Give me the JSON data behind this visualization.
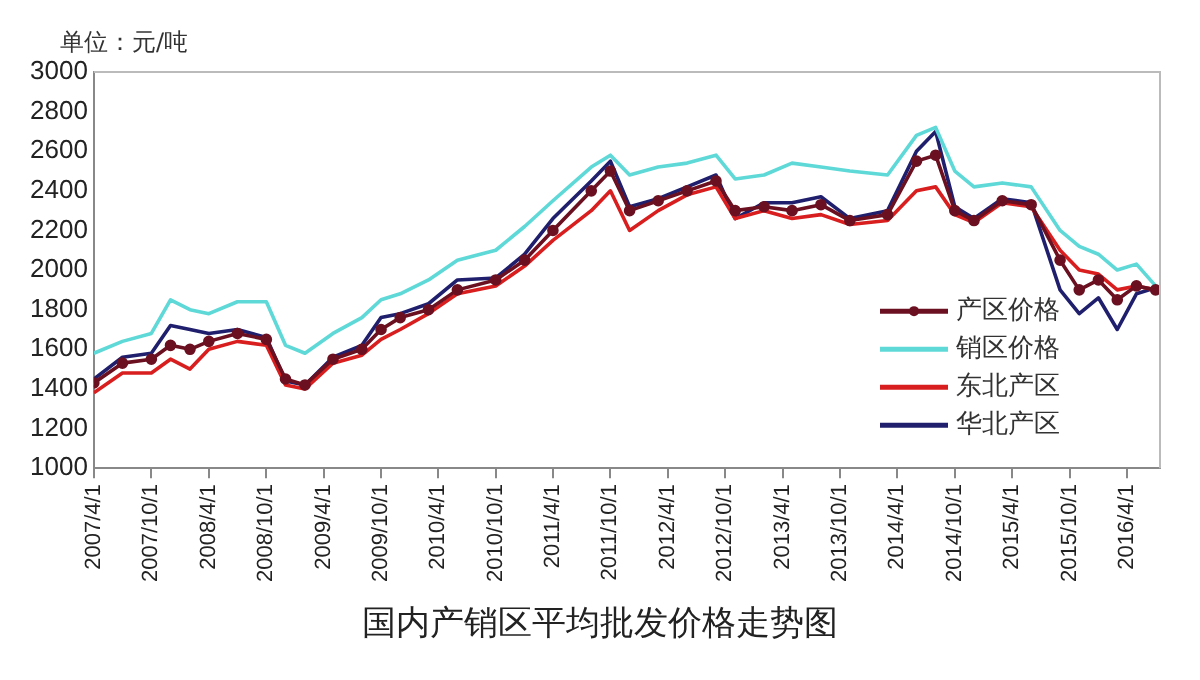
{
  "chart_data": {
    "type": "line",
    "title": "国内产销区平均批发价格走势图",
    "ylabel": "单位：元/吨",
    "x": [
      "2007-04-01",
      "2007-07-01",
      "2007-10-01",
      "2007-12-01",
      "2008-02-01",
      "2008-04-01",
      "2008-07-01",
      "2008-10-01",
      "2008-12-01",
      "2009-02-01",
      "2009-05-01",
      "2009-08-01",
      "2009-10-01",
      "2009-12-01",
      "2010-03-01",
      "2010-06-01",
      "2010-10-01",
      "2011-01-01",
      "2011-04-01",
      "2011-08-01",
      "2011-10-01",
      "2011-12-01",
      "2012-03-01",
      "2012-06-01",
      "2012-09-01",
      "2012-11-01",
      "2013-02-01",
      "2013-05-01",
      "2013-08-01",
      "2013-11-01",
      "2014-03-01",
      "2014-06-01",
      "2014-08-01",
      "2014-10-01",
      "2014-12-01",
      "2015-03-01",
      "2015-06-01",
      "2015-09-01",
      "2015-11-01",
      "2016-01-01",
      "2016-03-01",
      "2016-05-01",
      "2016-07-01"
    ],
    "series": [
      {
        "name": "产区价格",
        "color": "#6b1020",
        "marker": "circle",
        "values": [
          1430,
          1530,
          1550,
          1620,
          1600,
          1640,
          1680,
          1650,
          1450,
          1420,
          1550,
          1600,
          1700,
          1760,
          1800,
          1900,
          1950,
          2050,
          2200,
          2400,
          2500,
          2300,
          2350,
          2400,
          2450,
          2300,
          2320,
          2300,
          2330,
          2250,
          2280,
          2550,
          2580,
          2300,
          2250,
          2350,
          2330,
          2050,
          1900,
          1950,
          1850,
          1920,
          1900
        ]
      },
      {
        "name": "销区价格",
        "color": "#5fd8d8",
        "values": [
          1580,
          1640,
          1680,
          1850,
          1800,
          1780,
          1840,
          1840,
          1620,
          1580,
          1680,
          1760,
          1850,
          1880,
          1950,
          2050,
          2100,
          2220,
          2350,
          2520,
          2580,
          2480,
          2520,
          2540,
          2580,
          2460,
          2480,
          2540,
          2520,
          2500,
          2480,
          2680,
          2720,
          2500,
          2420,
          2440,
          2420,
          2200,
          2120,
          2080,
          2000,
          2030,
          1920
        ]
      },
      {
        "name": "东北产区",
        "color": "#d81e1e",
        "values": [
          1380,
          1480,
          1480,
          1550,
          1500,
          1600,
          1640,
          1620,
          1420,
          1400,
          1530,
          1570,
          1650,
          1700,
          1780,
          1880,
          1920,
          2020,
          2150,
          2300,
          2400,
          2200,
          2300,
          2380,
          2420,
          2260,
          2300,
          2260,
          2280,
          2230,
          2250,
          2400,
          2420,
          2280,
          2240,
          2340,
          2320,
          2100,
          2000,
          1980,
          1900,
          1920,
          1900
        ]
      },
      {
        "name": "华北产区",
        "color": "#1f1f6e",
        "values": [
          1450,
          1560,
          1580,
          1720,
          1700,
          1680,
          1700,
          1660,
          1440,
          1420,
          1560,
          1620,
          1760,
          1780,
          1830,
          1950,
          1960,
          2080,
          2260,
          2450,
          2550,
          2320,
          2360,
          2420,
          2480,
          2260,
          2340,
          2340,
          2370,
          2260,
          2300,
          2600,
          2700,
          2320,
          2260,
          2360,
          2340,
          1900,
          1780,
          1860,
          1700,
          1880,
          1910
        ]
      }
    ],
    "xlim": [
      "2007-04-01",
      "2016-07-15"
    ],
    "xticks": [
      {
        "value": "2007-04-01",
        "label": "2007/4/1"
      },
      {
        "value": "2007-10-01",
        "label": "2007/10/1"
      },
      {
        "value": "2008-04-01",
        "label": "2008/4/1"
      },
      {
        "value": "2008-10-01",
        "label": "2008/10/1"
      },
      {
        "value": "2009-04-01",
        "label": "2009/4/1"
      },
      {
        "value": "2009-10-01",
        "label": "2009/10/1"
      },
      {
        "value": "2010-04-01",
        "label": "2010/4/1"
      },
      {
        "value": "2010-10-01",
        "label": "2010/10/1"
      },
      {
        "value": "2011-04-01",
        "label": "2011/4/1"
      },
      {
        "value": "2011-10-01",
        "label": "2011/10/1"
      },
      {
        "value": "2012-04-01",
        "label": "2012/4/1"
      },
      {
        "value": "2012-10-01",
        "label": "2012/10/1"
      },
      {
        "value": "2013-04-01",
        "label": "2013/4/1"
      },
      {
        "value": "2013-10-01",
        "label": "2013/10/1"
      },
      {
        "value": "2014-04-01",
        "label": "2014/4/1"
      },
      {
        "value": "2014-10-01",
        "label": "2014/10/1"
      },
      {
        "value": "2015-04-01",
        "label": "2015/4/1"
      },
      {
        "value": "2015-10-01",
        "label": "2015/10/1"
      },
      {
        "value": "2016-04-01",
        "label": "2016/4/1"
      }
    ],
    "ylim": [
      1000,
      3000
    ],
    "yticks": [
      1000,
      1200,
      1400,
      1600,
      1800,
      2000,
      2200,
      2400,
      2600,
      2800,
      3000
    ],
    "grid": false,
    "legend": "bottom right",
    "line_style": "solid"
  }
}
